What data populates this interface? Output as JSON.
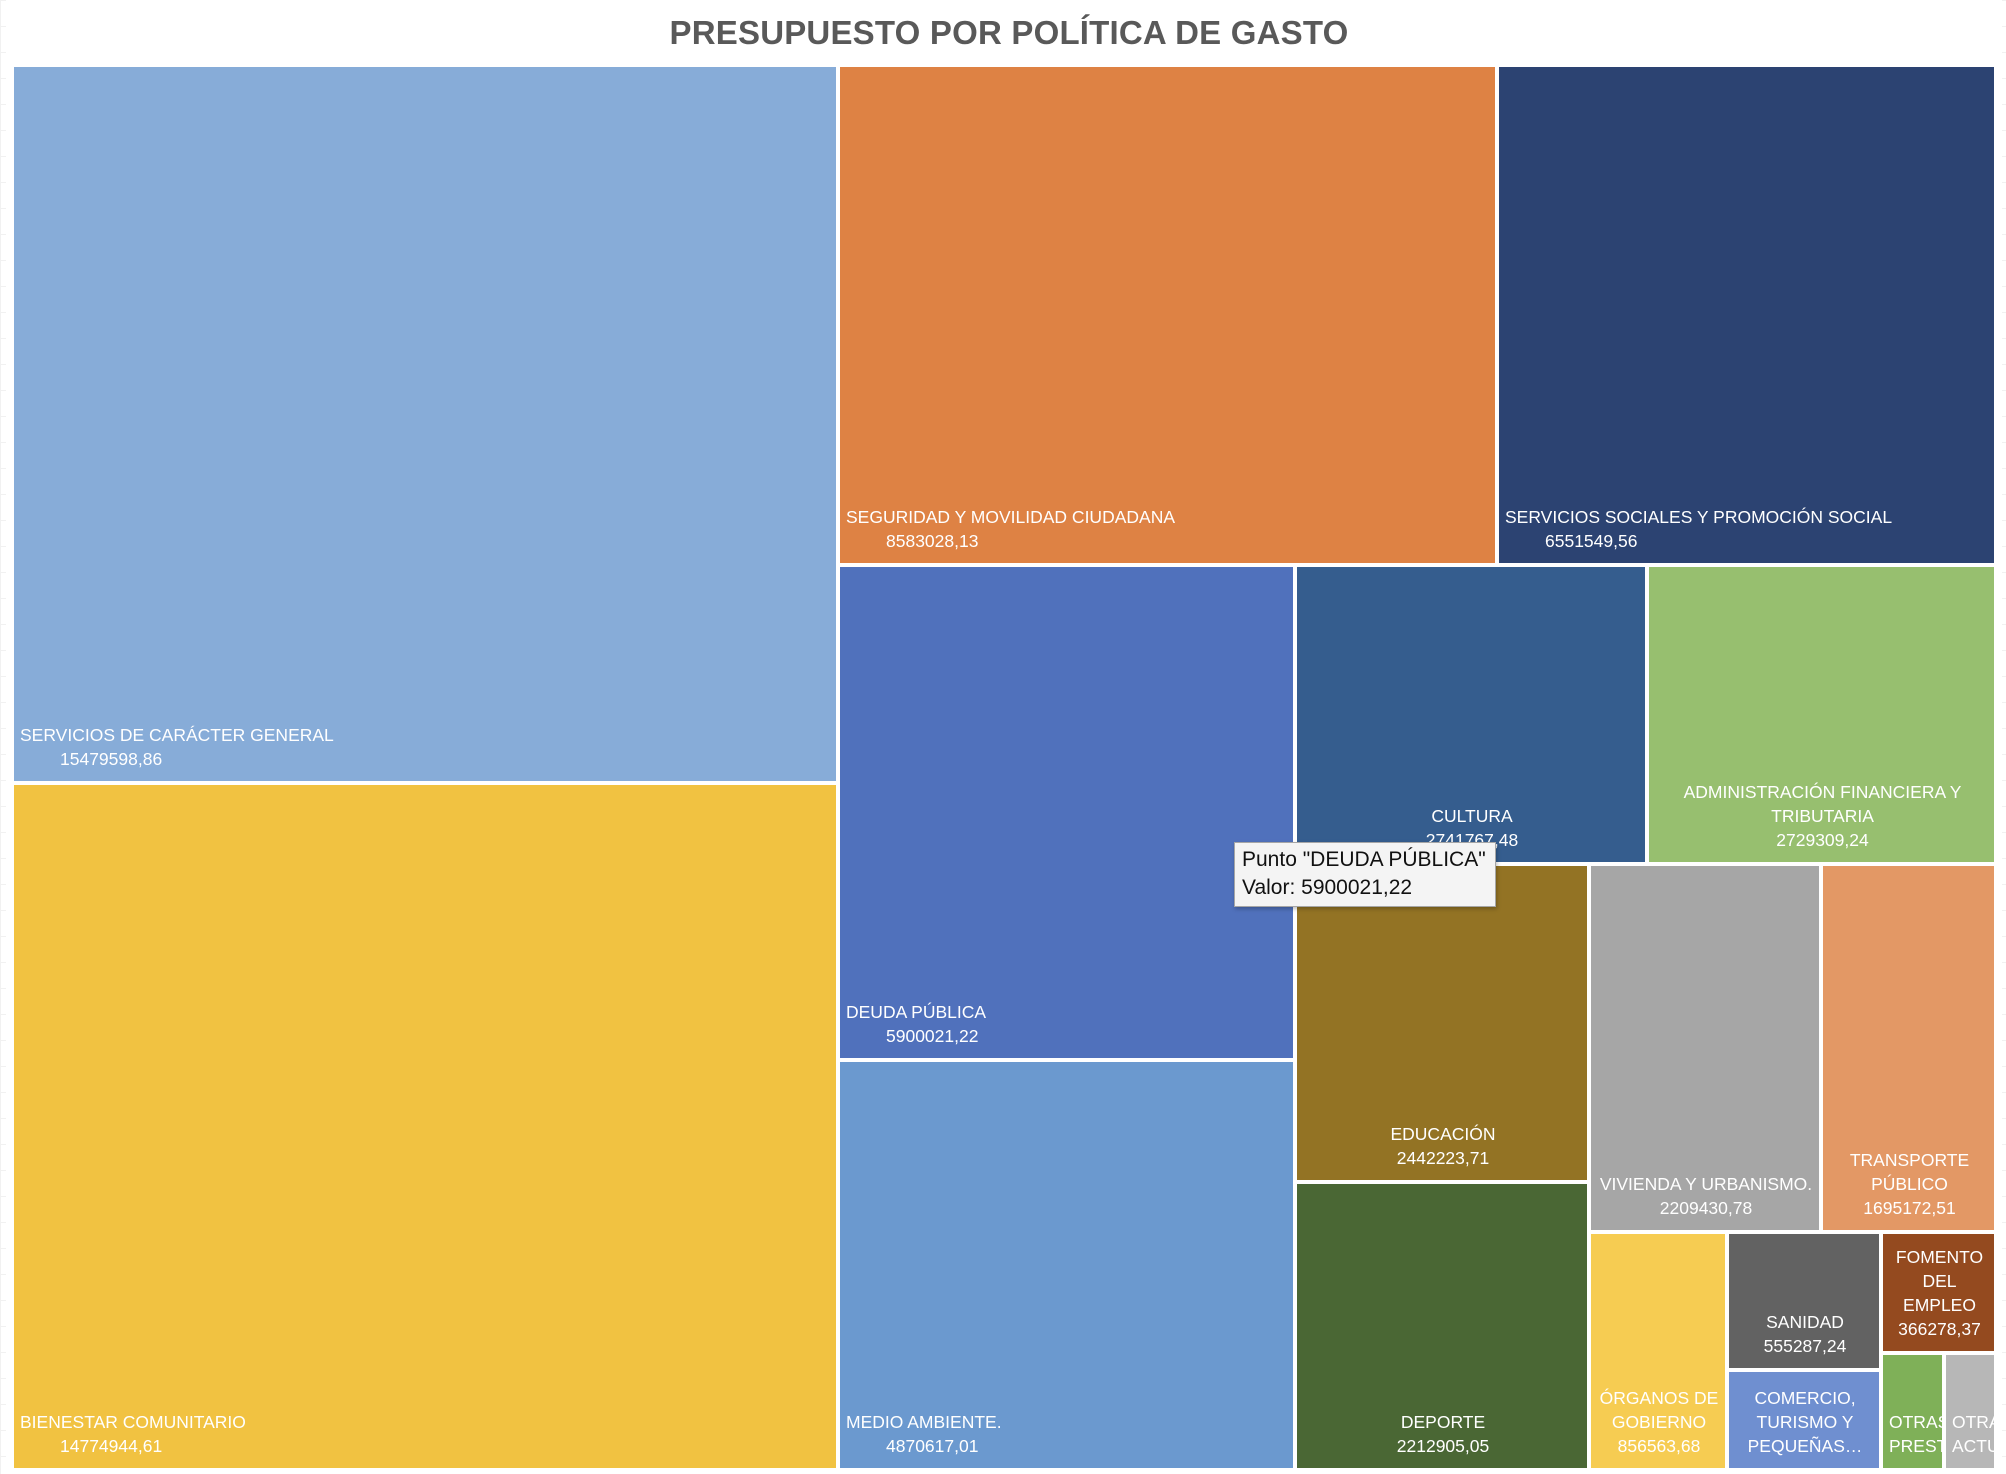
{
  "chart_data": {
    "type": "treemap",
    "title": "PRESUPUESTO POR POLÍTICA DE GASTO",
    "items": [
      {
        "label": "SERVICIOS DE CARÁCTER GENERAL",
        "value": 15479598.86,
        "value_text": "15479598,86",
        "color": "#87acd8"
      },
      {
        "label": "BIENESTAR COMUNITARIO",
        "value": 14774944.61,
        "value_text": "14774944,61",
        "color": "#f1c241"
      },
      {
        "label": "SEGURIDAD Y MOVILIDAD CIUDADANA",
        "value": 8583028.13,
        "value_text": "8583028,13",
        "color": "#de8244"
      },
      {
        "label": "SERVICIOS SOCIALES Y PROMOCIÓN SOCIAL",
        "value": 6551549.56,
        "value_text": "6551549,56",
        "color": "#2c4372"
      },
      {
        "label": "DEUDA PÚBLICA",
        "value": 5900021.22,
        "value_text": "5900021,22",
        "color": "#5071bc"
      },
      {
        "label": "MEDIO AMBIENTE.",
        "value": 4870617.01,
        "value_text": "4870617,01",
        "color": "#6b99cf"
      },
      {
        "label": "CULTURA",
        "value": null,
        "value_text": "2741767,48",
        "color": "#355d8e"
      },
      {
        "label": "ADMINISTRACIÓN FINANCIERA Y TRIBUTARIA",
        "value": 2729309.24,
        "value_text": "2729309,24",
        "color": "#97bf6f"
      },
      {
        "label": "EDUCACIÓN",
        "value": 2442223.71,
        "value_text": "2442223,71",
        "color": "#937324"
      },
      {
        "label": "DEPORTE",
        "value": 2212905.05,
        "value_text": "2212905,05",
        "color": "#4a6734"
      },
      {
        "label": "VIVIENDA Y URBANISMO.",
        "value": 2209430.78,
        "value_text": "2209430,78",
        "color": "#a6a6a6"
      },
      {
        "label": "TRANSPORTE PÚBLICO",
        "value": 1695172.51,
        "value_text": "1695172,51",
        "color": "#e39865"
      },
      {
        "label": "ÓRGANOS DE GOBIERNO",
        "value": 856563.68,
        "value_text": "856563,68",
        "color": "#f6cc52"
      },
      {
        "label": "SANIDAD",
        "value": 555287.24,
        "value_text": "555287,24",
        "color": "#626262"
      },
      {
        "label": "FOMENTO DEL EMPLEO",
        "value": 366278.37,
        "value_text": "366278,37",
        "color": "#944a1f"
      },
      {
        "label": "COMERCIO, TURISMO Y PEQUEÑAS…",
        "value": null,
        "value_text": "",
        "color": "#6f8fd0"
      },
      {
        "label": "OTRAS PRESTAC…",
        "value": null,
        "value_text": "",
        "color": "#7fb058"
      },
      {
        "label": "OTRAS ACTU…",
        "value": null,
        "value_text": "",
        "color": "#b7b7b7"
      }
    ]
  },
  "tooltip": {
    "line1": "Punto \"DEUDA PÚBLICA\"",
    "line2": "Valor: 5900021,22"
  }
}
